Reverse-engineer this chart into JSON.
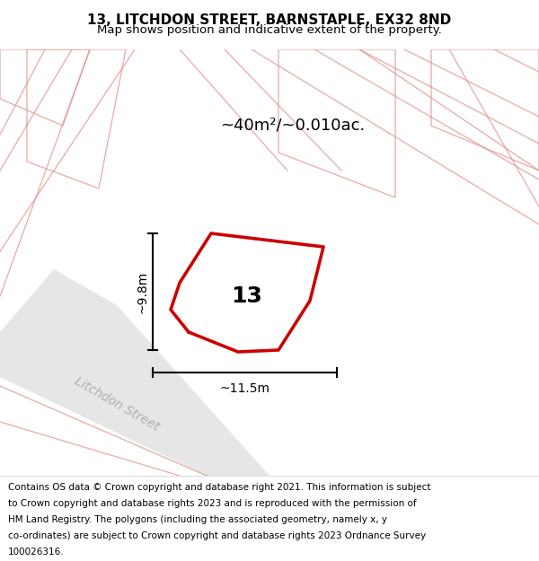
{
  "title": "13, LITCHDON STREET, BARNSTAPLE, EX32 8ND",
  "subtitle": "Map shows position and indicative extent of the property.",
  "area_label": "~40m²/~0.010ac.",
  "width_label": "~11.5m",
  "height_label": "~9.8m",
  "plot_number": "13",
  "street_label": "Litchdon Street",
  "footer_text": "Contains OS data © Crown copyright and database right 2021. This information is subject to Crown copyright and database rights 2023 and is reproduced with the permission of HM Land Registry. The polygons (including the associated geometry, namely x, y co-ordinates) are subject to Crown copyright and database rights 2023 Ordnance Survey 100026316.",
  "bg_color": "#f0f0f0",
  "map_bg": "#f5f5f5",
  "plot_color": "#cc0000",
  "road_line_color": "#c8c8c8",
  "road_fill_color": "#e8e8e8",
  "street_text_color": "#b0b0b0",
  "title_fontsize": 11,
  "subtitle_fontsize": 9.5,
  "footer_fontsize": 7.5
}
